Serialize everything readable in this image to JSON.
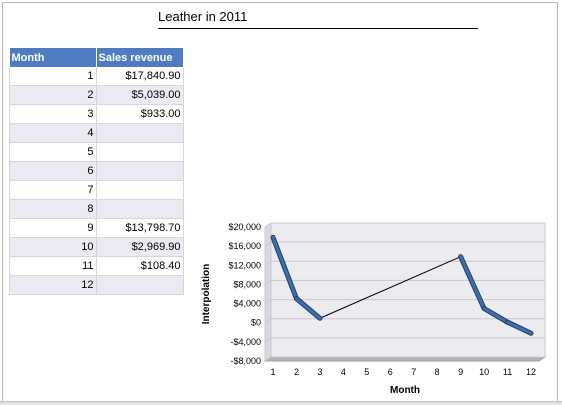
{
  "title": "Leather in 2011",
  "table": {
    "headers": [
      "Month",
      "Sales revenue"
    ],
    "rows": [
      [
        "1",
        "$17,840.90"
      ],
      [
        "2",
        "$5,039.00"
      ],
      [
        "3",
        "$933.00"
      ],
      [
        "4",
        ""
      ],
      [
        "5",
        ""
      ],
      [
        "6",
        ""
      ],
      [
        "7",
        ""
      ],
      [
        "8",
        ""
      ],
      [
        "9",
        "$13,798.70"
      ],
      [
        "10",
        "$2,969.90"
      ],
      [
        "11",
        "$108.40"
      ],
      [
        "12",
        ""
      ]
    ]
  },
  "chart_data": {
    "type": "line",
    "title": "",
    "xlabel": "Month",
    "ylabel": "Interpolation",
    "categories": [
      "1",
      "2",
      "3",
      "4",
      "5",
      "6",
      "7",
      "8",
      "9",
      "10",
      "11",
      "12"
    ],
    "ylim": [
      -8000,
      20000
    ],
    "yticks": [
      20000,
      16000,
      12000,
      8000,
      4000,
      0,
      -4000,
      -8000
    ],
    "ytick_labels": [
      "$20,000",
      "$16,000",
      "$12,000",
      "$8,000",
      "$4,000",
      "$0",
      "-$4,000",
      "-$8,000"
    ],
    "series": [
      {
        "values": [
          17840.9,
          5039.0,
          933.0,
          null,
          null,
          null,
          null,
          null,
          13798.7,
          2969.9,
          108.4,
          -2200
        ],
        "color": "#3f6fa8"
      }
    ],
    "interpolated_segment": {
      "from_month": 3,
      "to_month": 9,
      "color": "#000000"
    },
    "grid": true
  }
}
